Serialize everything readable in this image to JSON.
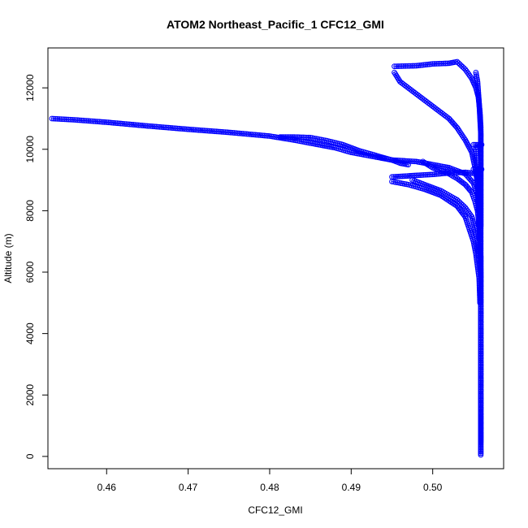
{
  "chart_data": {
    "type": "scatter",
    "title": "ATOM2 Northeast_Pacific_1 CFC12_GMI",
    "xlabel": "CFC12_GMI",
    "ylabel": "Altitude (m)",
    "xlim": [
      0.4528,
      0.5087
    ],
    "ylim": [
      -400,
      13300
    ],
    "xticks": [
      0.46,
      0.47,
      0.48,
      0.49,
      0.5
    ],
    "xtick_labels": [
      "0.46",
      "0.47",
      "0.48",
      "0.49",
      "0.50"
    ],
    "yticks": [
      0,
      2000,
      4000,
      6000,
      8000,
      10000,
      12000
    ],
    "ytick_labels": [
      "0",
      "2000",
      "4000",
      "6000",
      "8000",
      "10000",
      "12000"
    ],
    "marker": "open-circle",
    "color": "#0000ff",
    "grid": false,
    "legend": "none",
    "series": [
      {
        "segments": [
          {
            "points": [
              [
                0.4533,
                11000
              ],
              [
                0.456,
                10960
              ],
              [
                0.46,
                10880
              ],
              [
                0.465,
                10760
              ],
              [
                0.47,
                10650
              ],
              [
                0.475,
                10550
              ],
              [
                0.48,
                10430
              ],
              [
                0.483,
                10300
              ],
              [
                0.485,
                10200
              ],
              [
                0.488,
                10050
              ],
              [
                0.49,
                9900
              ],
              [
                0.495,
                9650
              ],
              [
                0.498,
                9600
              ],
              [
                0.502,
                9400
              ],
              [
                0.504,
                9200
              ],
              [
                0.505,
                8900
              ],
              [
                0.5055,
                8500
              ],
              [
                0.5057,
                8000
              ],
              [
                0.5058,
                7000
              ],
              [
                0.5059,
                6000
              ],
              [
                0.5059,
                4000
              ],
              [
                0.5059,
                2000
              ],
              [
                0.5059,
                500
              ],
              [
                0.5059,
                50
              ]
            ]
          },
          {
            "points": [
              [
                0.4813,
                10400
              ],
              [
                0.483,
                10400
              ],
              [
                0.485,
                10380
              ],
              [
                0.487,
                10280
              ],
              [
                0.489,
                10150
              ],
              [
                0.491,
                9950
              ],
              [
                0.493,
                9800
              ],
              [
                0.495,
                9650
              ],
              [
                0.496,
                9550
              ],
              [
                0.497,
                9500
              ]
            ]
          },
          {
            "points": [
              [
                0.4988,
                9600
              ],
              [
                0.5,
                9400
              ],
              [
                0.501,
                9300
              ],
              [
                0.502,
                9200
              ],
              [
                0.503,
                9050
              ],
              [
                0.504,
                8850
              ],
              [
                0.5048,
                8600
              ],
              [
                0.5052,
                8300
              ],
              [
                0.5055,
                8000
              ],
              [
                0.5057,
                7500
              ],
              [
                0.5058,
                7000
              ],
              [
                0.5059,
                6500
              ],
              [
                0.5059,
                5000
              ],
              [
                0.5059,
                3000
              ],
              [
                0.5059,
                1000
              ],
              [
                0.5059,
                100
              ]
            ]
          },
          {
            "points": [
              [
                0.495,
                9100
              ],
              [
                0.498,
                9150
              ],
              [
                0.5,
                9180
              ],
              [
                0.502,
                9230
              ],
              [
                0.504,
                9250
              ],
              [
                0.5055,
                9200
              ]
            ]
          },
          {
            "points": [
              [
                0.4975,
                9000
              ],
              [
                0.499,
                8850
              ],
              [
                0.501,
                8650
              ],
              [
                0.502,
                8500
              ],
              [
                0.503,
                8350
              ],
              [
                0.504,
                8100
              ],
              [
                0.5048,
                7800
              ],
              [
                0.5052,
                7400
              ],
              [
                0.5055,
                7000
              ],
              [
                0.5057,
                6500
              ]
            ]
          },
          {
            "points": [
              [
                0.495,
                8950
              ],
              [
                0.497,
                8850
              ],
              [
                0.499,
                8700
              ],
              [
                0.501,
                8500
              ],
              [
                0.503,
                8150
              ],
              [
                0.504,
                7800
              ],
              [
                0.5045,
                7400
              ],
              [
                0.505,
                7000
              ],
              [
                0.5053,
                6600
              ],
              [
                0.5055,
                6200
              ],
              [
                0.5057,
                5800
              ],
              [
                0.5058,
                5000
              ]
            ]
          },
          {
            "points": [
              [
                0.4953,
                12700
              ],
              [
                0.498,
                12720
              ],
              [
                0.5,
                12780
              ],
              [
                0.502,
                12800
              ],
              [
                0.503,
                12850
              ],
              [
                0.504,
                12600
              ],
              [
                0.5048,
                12300
              ],
              [
                0.5053,
                12000
              ],
              [
                0.5056,
                11700
              ],
              [
                0.5058,
                11200
              ],
              [
                0.5059,
                10700
              ],
              [
                0.5059,
                10000
              ],
              [
                0.5059,
                9000
              ],
              [
                0.5059,
                7500
              ]
            ]
          },
          {
            "points": [
              [
                0.4953,
                12500
              ],
              [
                0.496,
                12200
              ],
              [
                0.498,
                11800
              ],
              [
                0.5,
                11400
              ],
              [
                0.502,
                11000
              ],
              [
                0.503,
                10700
              ],
              [
                0.504,
                10300
              ],
              [
                0.5048,
                9900
              ],
              [
                0.5052,
                9400
              ],
              [
                0.5055,
                8900
              ],
              [
                0.5057,
                8400
              ],
              [
                0.5058,
                7800
              ]
            ]
          },
          {
            "points": [
              [
                0.5053,
                12500
              ],
              [
                0.5055,
                12200
              ],
              [
                0.5057,
                11500
              ],
              [
                0.5058,
                11000
              ],
              [
                0.5059,
                10500
              ],
              [
                0.5059,
                9500
              ],
              [
                0.5059,
                8000
              ],
              [
                0.5059,
                6000
              ],
              [
                0.5059,
                4000
              ],
              [
                0.5059,
                2000
              ],
              [
                0.5059,
                500
              ]
            ]
          },
          {
            "points": [
              [
                0.505,
                10150
              ],
              [
                0.506,
                10150
              ],
              [
                0.5053,
                10050
              ],
              [
                0.5054,
                9500
              ],
              [
                0.5055,
                9000
              ],
              [
                0.5056,
                8000
              ]
            ]
          },
          {
            "points": [
              [
                0.505,
                9350
              ],
              [
                0.506,
                9350
              ],
              [
                0.5054,
                9300
              ],
              [
                0.5055,
                9000
              ],
              [
                0.5056,
                8500
              ]
            ]
          }
        ]
      }
    ]
  }
}
